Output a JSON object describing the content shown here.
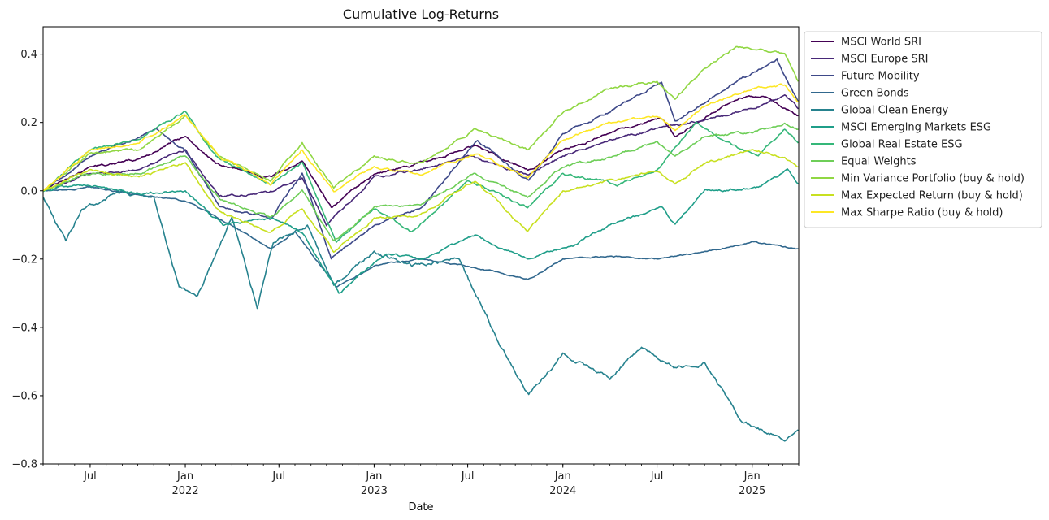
{
  "chart_data": {
    "type": "line",
    "title": "Cumulative Log-Returns",
    "xlabel": "Date",
    "ylabel": "",
    "ylim": [
      -0.8,
      0.48
    ],
    "xlim": [
      "2021-04-01",
      "2025-04-01"
    ],
    "grid": false,
    "legend_position": "outside-right",
    "y_ticks": [
      "0.4",
      "0.2",
      "0.0",
      "−0.2",
      "−0.4",
      "−0.6",
      "−0.8"
    ],
    "y_tick_values": [
      0.4,
      0.2,
      0.0,
      -0.2,
      -0.4,
      -0.6,
      -0.8
    ],
    "x_ticks": [
      {
        "date": "2021-07-01",
        "label": "Jul",
        "year": ""
      },
      {
        "date": "2022-01-01",
        "label": "Jan",
        "year": "2022"
      },
      {
        "date": "2022-07-01",
        "label": "Jul",
        "year": ""
      },
      {
        "date": "2023-01-01",
        "label": "Jan",
        "year": "2023"
      },
      {
        "date": "2023-07-01",
        "label": "Jul",
        "year": ""
      },
      {
        "date": "2024-01-01",
        "label": "Jan",
        "year": "2024"
      },
      {
        "date": "2024-07-01",
        "label": "Jul",
        "year": ""
      },
      {
        "date": "2025-01-01",
        "label": "Jan",
        "year": "2025"
      }
    ],
    "series": [
      {
        "name": "MSCI World SRI",
        "color": "#440154",
        "points": [
          [
            "2021-04-01",
            0.0
          ],
          [
            "2021-07-01",
            0.07
          ],
          [
            "2021-10-01",
            0.09
          ],
          [
            "2022-01-01",
            0.16
          ],
          [
            "2022-03-01",
            0.08
          ],
          [
            "2022-06-15",
            0.04
          ],
          [
            "2022-08-15",
            0.09
          ],
          [
            "2022-10-10",
            -0.05
          ],
          [
            "2023-01-01",
            0.05
          ],
          [
            "2023-04-01",
            0.08
          ],
          [
            "2023-07-15",
            0.13
          ],
          [
            "2023-10-25",
            0.06
          ],
          [
            "2024-01-01",
            0.12
          ],
          [
            "2024-04-01",
            0.17
          ],
          [
            "2024-07-10",
            0.21
          ],
          [
            "2024-08-05",
            0.16
          ],
          [
            "2024-12-01",
            0.27
          ],
          [
            "2025-01-20",
            0.28
          ],
          [
            "2025-03-31",
            0.22
          ]
        ]
      },
      {
        "name": "MSCI Europe SRI",
        "color": "#482878",
        "points": [
          [
            "2021-04-01",
            0.0
          ],
          [
            "2021-07-01",
            0.05
          ],
          [
            "2021-10-01",
            0.06
          ],
          [
            "2022-01-01",
            0.12
          ],
          [
            "2022-03-08",
            -0.02
          ],
          [
            "2022-06-20",
            0.0
          ],
          [
            "2022-08-15",
            0.04
          ],
          [
            "2022-10-01",
            -0.1
          ],
          [
            "2023-01-01",
            0.04
          ],
          [
            "2023-03-20",
            0.06
          ],
          [
            "2023-07-01",
            0.1
          ],
          [
            "2023-10-25",
            0.05
          ],
          [
            "2024-01-01",
            0.1
          ],
          [
            "2024-04-01",
            0.15
          ],
          [
            "2024-07-01",
            0.18
          ],
          [
            "2024-10-01",
            0.21
          ],
          [
            "2025-01-01",
            0.24
          ],
          [
            "2025-03-05",
            0.28
          ],
          [
            "2025-03-31",
            0.24
          ]
        ]
      },
      {
        "name": "Future Mobility",
        "color": "#3e4989",
        "points": [
          [
            "2021-04-01",
            0.0
          ],
          [
            "2021-07-01",
            0.1
          ],
          [
            "2021-11-05",
            0.18
          ],
          [
            "2022-01-01",
            0.12
          ],
          [
            "2022-03-08",
            -0.05
          ],
          [
            "2022-06-15",
            -0.08
          ],
          [
            "2022-08-15",
            0.05
          ],
          [
            "2022-10-10",
            -0.2
          ],
          [
            "2023-01-01",
            -0.1
          ],
          [
            "2023-04-01",
            -0.05
          ],
          [
            "2023-07-20",
            0.15
          ],
          [
            "2023-10-27",
            0.03
          ],
          [
            "2024-01-01",
            0.17
          ],
          [
            "2024-04-01",
            0.23
          ],
          [
            "2024-07-10",
            0.32
          ],
          [
            "2024-08-05",
            0.2
          ],
          [
            "2024-12-01",
            0.32
          ],
          [
            "2025-02-18",
            0.38
          ],
          [
            "2025-03-31",
            0.26
          ]
        ]
      },
      {
        "name": "Green Bonds",
        "color": "#31688e",
        "points": [
          [
            "2021-04-01",
            0.0
          ],
          [
            "2021-07-01",
            0.01
          ],
          [
            "2021-10-01",
            -0.01
          ],
          [
            "2022-01-01",
            -0.03
          ],
          [
            "2022-04-01",
            -0.1
          ],
          [
            "2022-06-15",
            -0.17
          ],
          [
            "2022-08-01",
            -0.12
          ],
          [
            "2022-10-20",
            -0.28
          ],
          [
            "2023-01-01",
            -0.22
          ],
          [
            "2023-04-01",
            -0.2
          ],
          [
            "2023-07-01",
            -0.22
          ],
          [
            "2023-10-25",
            -0.26
          ],
          [
            "2024-01-01",
            -0.2
          ],
          [
            "2024-04-01",
            -0.19
          ],
          [
            "2024-07-01",
            -0.2
          ],
          [
            "2024-10-01",
            -0.18
          ],
          [
            "2025-01-01",
            -0.15
          ],
          [
            "2025-03-31",
            -0.17
          ]
        ]
      },
      {
        "name": "Global Clean Energy",
        "color": "#26828e",
        "points": [
          [
            "2021-04-01",
            -0.02
          ],
          [
            "2021-05-15",
            -0.15
          ],
          [
            "2021-06-15",
            -0.05
          ],
          [
            "2021-09-01",
            0.0
          ],
          [
            "2021-11-01",
            -0.02
          ],
          [
            "2021-12-20",
            -0.28
          ],
          [
            "2022-01-25",
            -0.3
          ],
          [
            "2022-04-01",
            -0.08
          ],
          [
            "2022-05-20",
            -0.34
          ],
          [
            "2022-06-20",
            -0.15
          ],
          [
            "2022-08-25",
            -0.1
          ],
          [
            "2022-10-15",
            -0.28
          ],
          [
            "2023-01-01",
            -0.18
          ],
          [
            "2023-03-15",
            -0.22
          ],
          [
            "2023-06-15",
            -0.2
          ],
          [
            "2023-07-15",
            -0.3
          ],
          [
            "2023-09-01",
            -0.45
          ],
          [
            "2023-10-27",
            -0.6
          ],
          [
            "2024-01-01",
            -0.48
          ],
          [
            "2024-04-01",
            -0.55
          ],
          [
            "2024-06-01",
            -0.46
          ],
          [
            "2024-08-05",
            -0.52
          ],
          [
            "2024-10-01",
            -0.5
          ],
          [
            "2024-12-15",
            -0.68
          ],
          [
            "2025-01-20",
            -0.7
          ],
          [
            "2025-03-05",
            -0.73
          ],
          [
            "2025-03-31",
            -0.7
          ]
        ]
      },
      {
        "name": "MSCI Emerging Markets ESG",
        "color": "#1f9e89",
        "points": [
          [
            "2021-04-01",
            0.0
          ],
          [
            "2021-07-01",
            0.02
          ],
          [
            "2021-10-01",
            -0.01
          ],
          [
            "2022-01-01",
            0.0
          ],
          [
            "2022-03-15",
            -0.1
          ],
          [
            "2022-06-15",
            -0.08
          ],
          [
            "2022-08-15",
            -0.12
          ],
          [
            "2022-10-25",
            -0.3
          ],
          [
            "2023-01-25",
            -0.18
          ],
          [
            "2023-04-01",
            -0.2
          ],
          [
            "2023-07-15",
            -0.13
          ],
          [
            "2023-10-25",
            -0.2
          ],
          [
            "2024-01-20",
            -0.16
          ],
          [
            "2024-04-01",
            -0.1
          ],
          [
            "2024-07-10",
            -0.05
          ],
          [
            "2024-08-05",
            -0.1
          ],
          [
            "2024-10-01",
            0.0
          ],
          [
            "2025-01-13",
            0.01
          ],
          [
            "2025-03-10",
            0.06
          ],
          [
            "2025-03-31",
            0.02
          ]
        ]
      },
      {
        "name": "Global Real Estate ESG",
        "color": "#35b779",
        "points": [
          [
            "2021-04-01",
            0.0
          ],
          [
            "2021-07-01",
            0.12
          ],
          [
            "2021-10-01",
            0.15
          ],
          [
            "2022-01-01",
            0.23
          ],
          [
            "2022-03-01",
            0.1
          ],
          [
            "2022-06-15",
            0.02
          ],
          [
            "2022-08-15",
            0.08
          ],
          [
            "2022-10-20",
            -0.15
          ],
          [
            "2023-01-01",
            -0.05
          ],
          [
            "2023-03-15",
            -0.12
          ],
          [
            "2023-07-01",
            0.03
          ],
          [
            "2023-10-25",
            -0.05
          ],
          [
            "2024-01-01",
            0.05
          ],
          [
            "2024-04-15",
            0.02
          ],
          [
            "2024-07-01",
            0.06
          ],
          [
            "2024-09-15",
            0.2
          ],
          [
            "2024-11-01",
            0.15
          ],
          [
            "2025-01-13",
            0.1
          ],
          [
            "2025-03-05",
            0.18
          ],
          [
            "2025-03-31",
            0.14
          ]
        ]
      },
      {
        "name": "Equal Weights",
        "color": "#6ece58",
        "points": [
          [
            "2021-04-01",
            0.0
          ],
          [
            "2021-07-01",
            0.05
          ],
          [
            "2021-10-01",
            0.05
          ],
          [
            "2022-01-01",
            0.1
          ],
          [
            "2022-03-08",
            -0.02
          ],
          [
            "2022-06-15",
            -0.08
          ],
          [
            "2022-08-15",
            0.0
          ],
          [
            "2022-10-15",
            -0.15
          ],
          [
            "2023-01-01",
            -0.05
          ],
          [
            "2023-04-01",
            -0.04
          ],
          [
            "2023-07-15",
            0.05
          ],
          [
            "2023-10-25",
            -0.02
          ],
          [
            "2024-01-01",
            0.07
          ],
          [
            "2024-04-01",
            0.1
          ],
          [
            "2024-07-01",
            0.14
          ],
          [
            "2024-08-05",
            0.1
          ],
          [
            "2024-10-01",
            0.16
          ],
          [
            "2025-01-01",
            0.17
          ],
          [
            "2025-03-05",
            0.2
          ],
          [
            "2025-03-31",
            0.18
          ]
        ]
      },
      {
        "name": "Min Variance Portfolio (buy & hold)",
        "color": "#90d743",
        "points": [
          [
            "2021-04-01",
            0.0
          ],
          [
            "2021-07-01",
            0.11
          ],
          [
            "2021-10-01",
            0.12
          ],
          [
            "2022-01-01",
            0.22
          ],
          [
            "2022-03-08",
            0.1
          ],
          [
            "2022-06-15",
            0.03
          ],
          [
            "2022-08-15",
            0.14
          ],
          [
            "2022-10-15",
            0.01
          ],
          [
            "2023-01-01",
            0.1
          ],
          [
            "2023-04-01",
            0.08
          ],
          [
            "2023-07-15",
            0.18
          ],
          [
            "2023-10-25",
            0.12
          ],
          [
            "2024-01-01",
            0.23
          ],
          [
            "2024-04-01",
            0.3
          ],
          [
            "2024-07-01",
            0.32
          ],
          [
            "2024-08-05",
            0.27
          ],
          [
            "2024-10-01",
            0.36
          ],
          [
            "2024-12-01",
            0.42
          ],
          [
            "2025-01-20",
            0.41
          ],
          [
            "2025-03-05",
            0.4
          ],
          [
            "2025-03-31",
            0.32
          ]
        ]
      },
      {
        "name": "Max Expected Return (buy & hold)",
        "color": "#c8e020",
        "points": [
          [
            "2021-04-01",
            0.0
          ],
          [
            "2021-07-01",
            0.06
          ],
          [
            "2021-10-01",
            0.04
          ],
          [
            "2022-01-01",
            0.08
          ],
          [
            "2022-03-08",
            -0.06
          ],
          [
            "2022-06-15",
            -0.12
          ],
          [
            "2022-08-15",
            -0.05
          ],
          [
            "2022-10-15",
            -0.18
          ],
          [
            "2023-01-01",
            -0.08
          ],
          [
            "2023-04-01",
            -0.07
          ],
          [
            "2023-07-15",
            0.03
          ],
          [
            "2023-10-25",
            -0.12
          ],
          [
            "2024-01-01",
            0.0
          ],
          [
            "2024-04-01",
            0.03
          ],
          [
            "2024-07-01",
            0.06
          ],
          [
            "2024-08-05",
            0.02
          ],
          [
            "2024-10-01",
            0.08
          ],
          [
            "2025-01-01",
            0.12
          ],
          [
            "2025-03-05",
            0.1
          ],
          [
            "2025-03-31",
            0.07
          ]
        ]
      },
      {
        "name": "Max Sharpe Ratio (buy & hold)",
        "color": "#fde725",
        "points": [
          [
            "2021-04-01",
            0.0
          ],
          [
            "2021-07-01",
            0.12
          ],
          [
            "2021-10-01",
            0.14
          ],
          [
            "2022-01-01",
            0.22
          ],
          [
            "2022-03-08",
            0.1
          ],
          [
            "2022-06-15",
            0.02
          ],
          [
            "2022-08-15",
            0.12
          ],
          [
            "2022-10-15",
            0.0
          ],
          [
            "2023-01-01",
            0.07
          ],
          [
            "2023-04-01",
            0.05
          ],
          [
            "2023-07-15",
            0.11
          ],
          [
            "2023-10-25",
            0.04
          ],
          [
            "2024-01-01",
            0.15
          ],
          [
            "2024-04-01",
            0.2
          ],
          [
            "2024-07-01",
            0.22
          ],
          [
            "2024-08-05",
            0.18
          ],
          [
            "2024-10-01",
            0.25
          ],
          [
            "2025-01-01",
            0.3
          ],
          [
            "2025-03-05",
            0.31
          ],
          [
            "2025-03-31",
            0.26
          ]
        ]
      }
    ]
  }
}
